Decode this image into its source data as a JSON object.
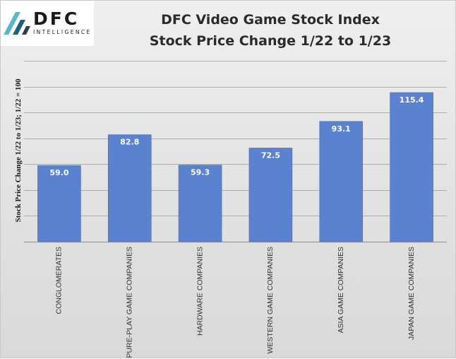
{
  "logo": {
    "name": "DFC",
    "subtitle": "INTELLIGENCE",
    "colors": [
      "#58b7c9",
      "#1e5f7a",
      "#2c3e50"
    ]
  },
  "chart_data": {
    "type": "bar",
    "title": "DFC Video Game Stock Index",
    "subtitle": "Stock Price Change 1/22 to 1/23",
    "ylabel": "Stock Price Change  1/22 to 1/23;  1/22 = 100",
    "xlabel": "",
    "categories": [
      "CONGLOMERATES",
      "PURE-PLAY GAME COMPANIES",
      "HARDWARE COMPANIES",
      "WESTERN GAME COMPANIES",
      "ASIA GAME COMPANIES",
      "JAPAN GAME COMPANIES"
    ],
    "values": [
      59.0,
      82.8,
      59.3,
      72.5,
      93.1,
      115.4
    ],
    "data_labels": [
      "59.0",
      "82.8",
      "59.3",
      "72.5",
      "93.1",
      "115.4"
    ],
    "ylim": [
      0,
      140
    ],
    "yticks": [
      0,
      20,
      40,
      60,
      80,
      100,
      120,
      140
    ],
    "ytick_labels_shown": false,
    "grid": true,
    "legend": "none",
    "colors": {
      "bar": "#5b82cf",
      "bar_edge": "#4a71be",
      "grid": "#9a9a9a",
      "data_label": "#ffffff"
    }
  }
}
